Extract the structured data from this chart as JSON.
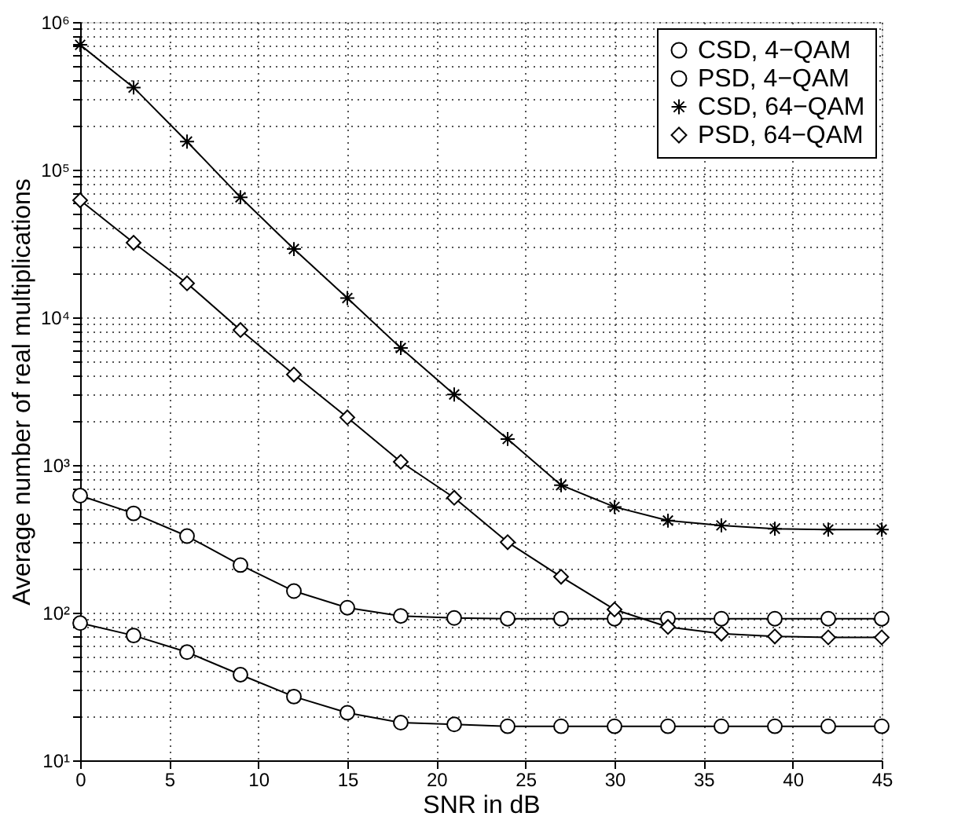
{
  "chart_data": {
    "type": "line",
    "xlabel": "SNR in dB",
    "ylabel": "Average number of real multiplications",
    "log": "y",
    "grid": true,
    "legend": "top right",
    "x": [
      0,
      3,
      6,
      9,
      12,
      15,
      18,
      21,
      24,
      27,
      30,
      33,
      36,
      39,
      42,
      45
    ],
    "xlim": [
      0,
      45
    ],
    "xticks": [
      0,
      5,
      10,
      15,
      20,
      25,
      30,
      35,
      40,
      45
    ],
    "ylim": [
      10,
      1000000
    ],
    "yticks": [
      {
        "value": 10,
        "label": "10¹"
      },
      {
        "value": 20,
        "label": null
      },
      {
        "value": 30,
        "label": null
      },
      {
        "value": 40,
        "label": null
      },
      {
        "value": 50,
        "label": null
      },
      {
        "value": 60,
        "label": null
      },
      {
        "value": 70,
        "label": null
      },
      {
        "value": 80,
        "label": null
      },
      {
        "value": 90,
        "label": null
      },
      {
        "value": 100,
        "label": "10²"
      },
      {
        "value": 200,
        "label": null
      },
      {
        "value": 300,
        "label": null
      },
      {
        "value": 400,
        "label": null
      },
      {
        "value": 500,
        "label": null
      },
      {
        "value": 600,
        "label": null
      },
      {
        "value": 700,
        "label": null
      },
      {
        "value": 800,
        "label": null
      },
      {
        "value": 900,
        "label": null
      },
      {
        "value": 1000,
        "label": "10³"
      },
      {
        "value": 2000,
        "label": null
      },
      {
        "value": 3000,
        "label": null
      },
      {
        "value": 4000,
        "label": null
      },
      {
        "value": 5000,
        "label": null
      },
      {
        "value": 6000,
        "label": null
      },
      {
        "value": 7000,
        "label": null
      },
      {
        "value": 8000,
        "label": null
      },
      {
        "value": 9000,
        "label": null
      },
      {
        "value": 10000,
        "label": "10⁴"
      },
      {
        "value": 20000,
        "label": null
      },
      {
        "value": 30000,
        "label": null
      },
      {
        "value": 40000,
        "label": null
      },
      {
        "value": 50000,
        "label": null
      },
      {
        "value": 60000,
        "label": null
      },
      {
        "value": 70000,
        "label": null
      },
      {
        "value": 80000,
        "label": null
      },
      {
        "value": 90000,
        "label": null
      },
      {
        "value": 100000,
        "label": "10⁵"
      },
      {
        "value": 200000,
        "label": null
      },
      {
        "value": 300000,
        "label": null
      },
      {
        "value": 400000,
        "label": null
      },
      {
        "value": 500000,
        "label": null
      },
      {
        "value": 600000,
        "label": null
      },
      {
        "value": 700000,
        "label": null
      },
      {
        "value": 800000,
        "label": null
      },
      {
        "value": 900000,
        "label": null
      },
      {
        "value": 1000000,
        "label": "10⁶"
      }
    ],
    "line_style": "solid",
    "series": [
      {
        "name": "CSD, 4−QAM",
        "color": "#000000",
        "marker": "circle",
        "values": [
          620,
          470,
          330,
          210,
          140,
          108,
          95,
          92,
          91,
          91,
          91,
          91,
          91,
          91,
          91,
          91
        ]
      },
      {
        "name": "PSD, 4−QAM",
        "color": "#000000",
        "marker": "circle",
        "values": [
          85,
          70,
          54,
          38,
          27,
          21,
          18,
          17.5,
          17,
          17,
          17,
          17,
          17,
          17,
          17,
          17
        ]
      },
      {
        "name": "CSD, 64−QAM",
        "color": "#000000",
        "marker": "cross",
        "values": [
          700000,
          360000,
          155000,
          65000,
          29000,
          13500,
          6200,
          3000,
          1500,
          730,
          520,
          420,
          390,
          370,
          365,
          365
        ]
      },
      {
        "name": "PSD, 64−QAM",
        "color": "#000000",
        "marker": "diamond",
        "values": [
          62000,
          32000,
          17000,
          8200,
          4100,
          2100,
          1050,
          600,
          300,
          175,
          105,
          80,
          72,
          69,
          68,
          68
        ]
      }
    ]
  }
}
